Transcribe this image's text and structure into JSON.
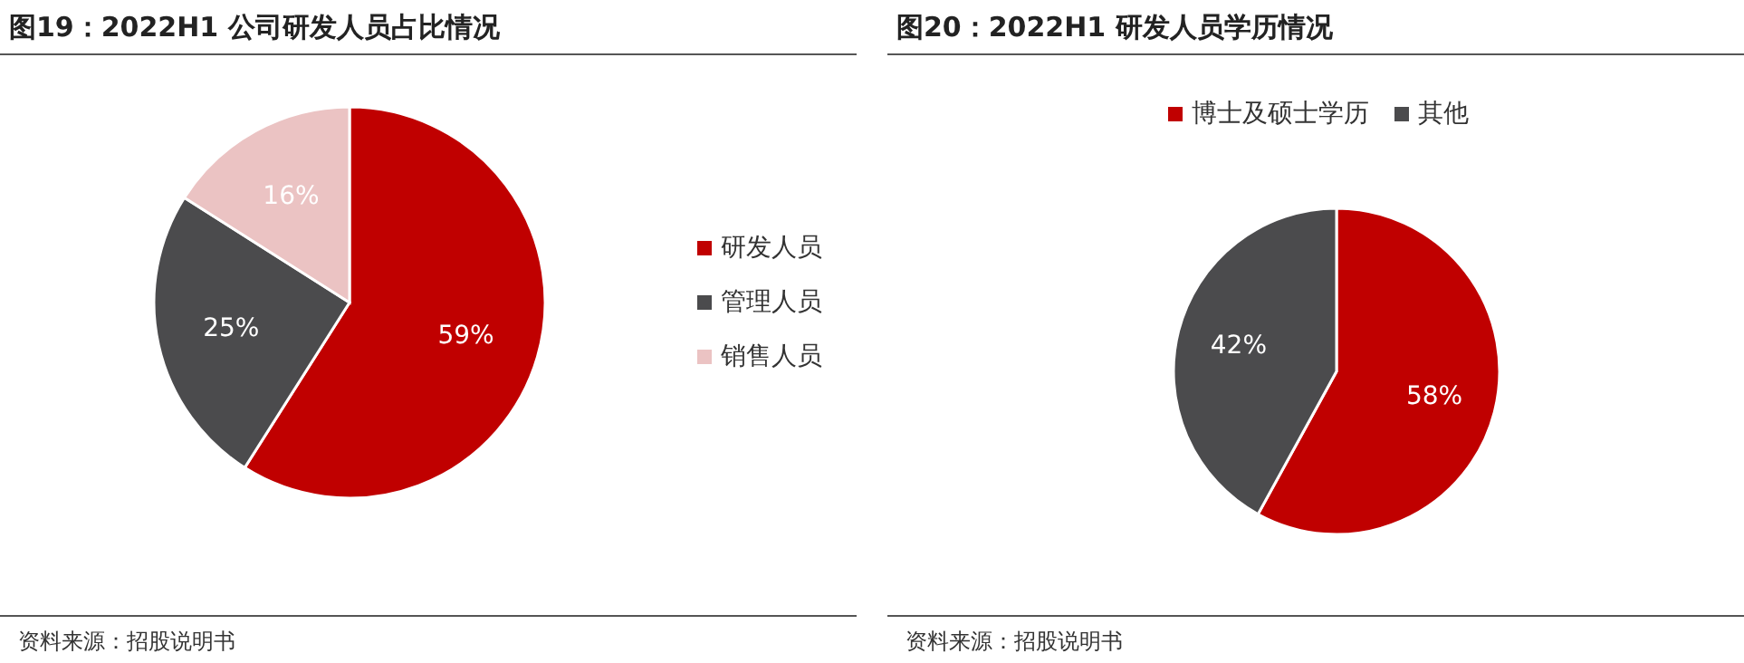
{
  "chart_data": [
    {
      "type": "pie",
      "title": "图19：2022H1 公司研发人员占比情况",
      "categories": [
        "研发人员",
        "管理人员",
        "销售人员"
      ],
      "values": [
        59,
        25,
        16
      ],
      "colors": [
        "#c00000",
        "#4b4b4d",
        "#ebc3c3"
      ],
      "value_labels": [
        "59%",
        "25%",
        "16%"
      ],
      "legend": "right",
      "annotations": [
        "资料来源：招股说明书"
      ]
    },
    {
      "type": "pie",
      "title": "图20：2022H1 研发人员学历情况",
      "categories": [
        "博士及硕士学历",
        "其他"
      ],
      "values": [
        58,
        42
      ],
      "colors": [
        "#c00000",
        "#4b4b4d"
      ],
      "value_labels": [
        "58%",
        "42%"
      ],
      "legend": "top",
      "annotations": [
        "资料来源：招股说明书"
      ]
    }
  ]
}
